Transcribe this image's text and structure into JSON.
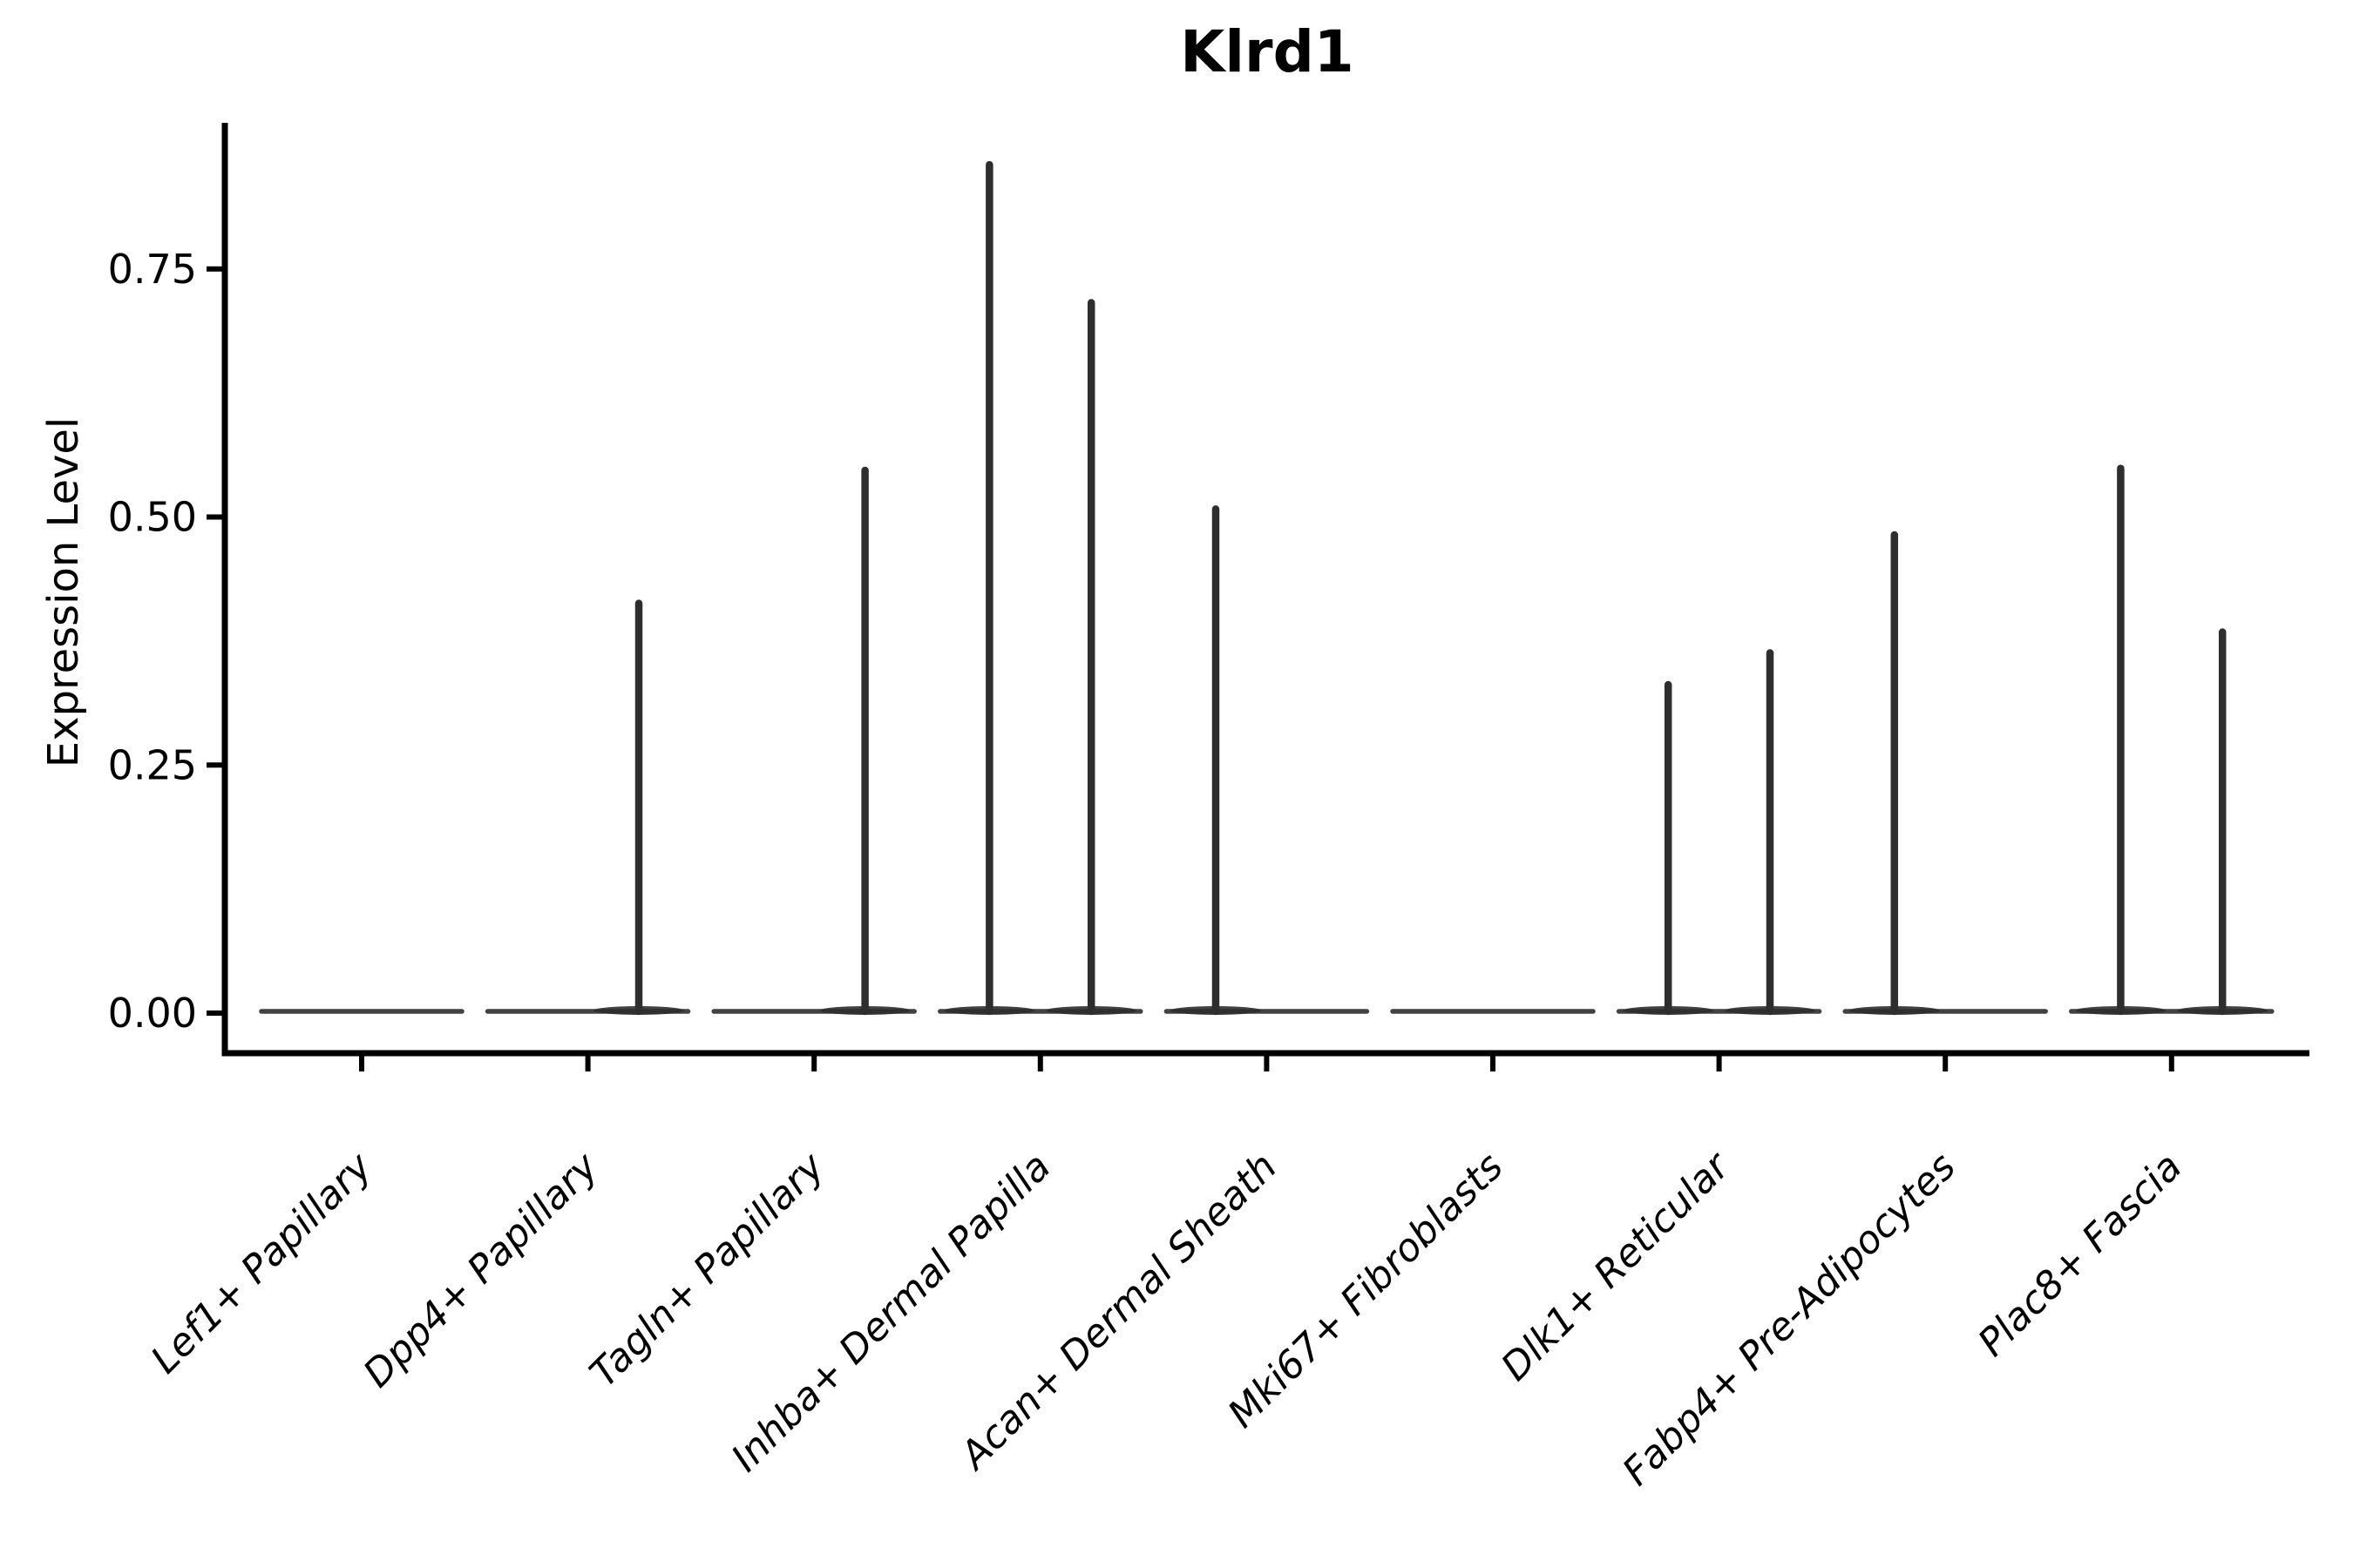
{
  "chart_data": {
    "type": "violin",
    "title": "Klrd1",
    "ylabel": "Expression Level",
    "xlabel": "",
    "grid": false,
    "legend": "none",
    "line_color": "#2e2e2e",
    "axis_color": "#000000",
    "background": "#ffffff",
    "ylim": [
      -0.04,
      0.9
    ],
    "y_ticks": [
      {
        "value": 0.0,
        "label": "0.00"
      },
      {
        "value": 0.25,
        "label": "0.25"
      },
      {
        "value": 0.5,
        "label": "0.50"
      },
      {
        "value": 0.75,
        "label": "0.75"
      }
    ],
    "violin_width": 0.9,
    "dodge_offset": 0.225,
    "categories": [
      {
        "label": "Lef1+ Papillary",
        "spikes": []
      },
      {
        "label": "Dpp4+ Papillary",
        "spikes": [
          {
            "offset": 0.225,
            "max": 0.413
          }
        ]
      },
      {
        "label": "Tagln+ Papillary",
        "spikes": [
          {
            "offset": 0.225,
            "max": 0.547
          }
        ]
      },
      {
        "label": "Inhba+ Dermal Papilla",
        "spikes": [
          {
            "offset": -0.225,
            "max": 0.855
          },
          {
            "offset": 0.225,
            "max": 0.716
          }
        ]
      },
      {
        "label": "Acan+ Dermal Sheath",
        "spikes": [
          {
            "offset": -0.225,
            "max": 0.508
          }
        ]
      },
      {
        "label": "Mki67+ Fibroblasts",
        "spikes": []
      },
      {
        "label": "Dlk1+ Reticular",
        "spikes": [
          {
            "offset": -0.225,
            "max": 0.331
          },
          {
            "offset": 0.225,
            "max": 0.363
          }
        ]
      },
      {
        "label": "Fabp4+ Pre-Adipocytes",
        "spikes": [
          {
            "offset": -0.225,
            "max": 0.482
          }
        ]
      },
      {
        "label": "Plac8+ Fascia",
        "spikes": [
          {
            "offset": -0.225,
            "max": 0.549
          },
          {
            "offset": 0.225,
            "max": 0.384
          }
        ]
      }
    ]
  }
}
